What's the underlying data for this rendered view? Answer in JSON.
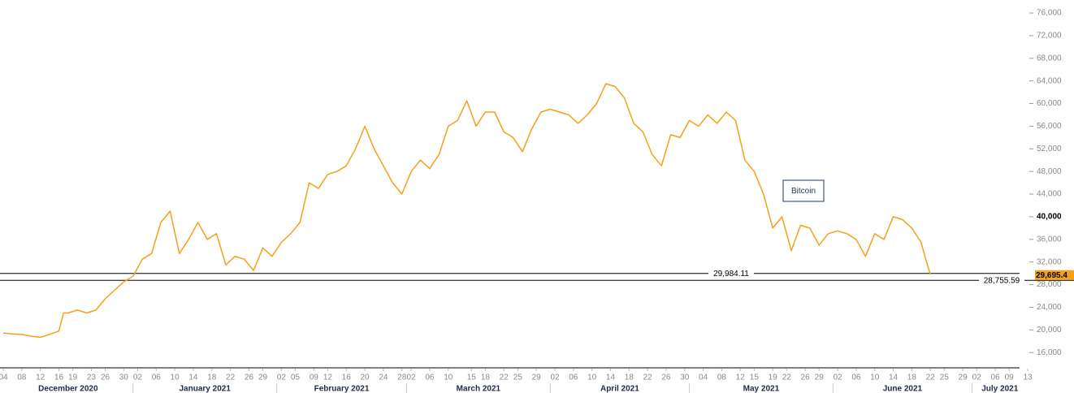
{
  "chart_data": {
    "type": "line",
    "series": [
      {
        "name": "Bitcoin",
        "color": "#f5a01a",
        "x": [
          "2020-12-04",
          "2020-12-06",
          "2020-12-08",
          "2020-12-10",
          "2020-12-12",
          "2020-12-14",
          "2020-12-16",
          "2020-12-17",
          "2020-12-18",
          "2020-12-20",
          "2020-12-22",
          "2020-12-24",
          "2020-12-26",
          "2020-12-28",
          "2020-12-30",
          "2021-01-01",
          "2021-01-03",
          "2021-01-05",
          "2021-01-07",
          "2021-01-09",
          "2021-01-11",
          "2021-01-13",
          "2021-01-15",
          "2021-01-17",
          "2021-01-19",
          "2021-01-21",
          "2021-01-23",
          "2021-01-25",
          "2021-01-27",
          "2021-01-29",
          "2021-01-31",
          "2021-02-02",
          "2021-02-04",
          "2021-02-06",
          "2021-02-08",
          "2021-02-10",
          "2021-02-12",
          "2021-02-14",
          "2021-02-16",
          "2021-02-18",
          "2021-02-20",
          "2021-02-22",
          "2021-02-24",
          "2021-02-26",
          "2021-02-28",
          "2021-03-02",
          "2021-03-04",
          "2021-03-06",
          "2021-03-08",
          "2021-03-10",
          "2021-03-12",
          "2021-03-14",
          "2021-03-16",
          "2021-03-18",
          "2021-03-20",
          "2021-03-22",
          "2021-03-24",
          "2021-03-26",
          "2021-03-28",
          "2021-03-30",
          "2021-04-01",
          "2021-04-03",
          "2021-04-05",
          "2021-04-07",
          "2021-04-09",
          "2021-04-11",
          "2021-04-13",
          "2021-04-15",
          "2021-04-17",
          "2021-04-19",
          "2021-04-21",
          "2021-04-23",
          "2021-04-25",
          "2021-04-27",
          "2021-04-29",
          "2021-05-01",
          "2021-05-03",
          "2021-05-05",
          "2021-05-07",
          "2021-05-09",
          "2021-05-11",
          "2021-05-13",
          "2021-05-15",
          "2021-05-17",
          "2021-05-19",
          "2021-05-21",
          "2021-05-23",
          "2021-05-25",
          "2021-05-27",
          "2021-05-29",
          "2021-05-31",
          "2021-06-02",
          "2021-06-04",
          "2021-06-06",
          "2021-06-08",
          "2021-06-10",
          "2021-06-12",
          "2021-06-14",
          "2021-06-16",
          "2021-06-18",
          "2021-06-20",
          "2021-06-21",
          "2021-06-22"
        ],
        "values": [
          19450,
          19300,
          19200,
          18900,
          18700,
          19200,
          19800,
          23000,
          23000,
          23500,
          23000,
          23500,
          25500,
          27000,
          28500,
          29500,
          32500,
          33500,
          39000,
          41000,
          33500,
          36000,
          39000,
          36000,
          37000,
          31500,
          33000,
          32500,
          30500,
          34500,
          33000,
          35500,
          37000,
          39000,
          46000,
          45000,
          47500,
          48000,
          49000,
          52000,
          56000,
          52000,
          49000,
          46000,
          44000,
          48000,
          50000,
          48500,
          51000,
          56000,
          57000,
          60500,
          56000,
          58500,
          58500,
          55000,
          54000,
          51500,
          55500,
          58500,
          59000,
          58500,
          58000,
          56500,
          58000,
          60000,
          63500,
          63000,
          61000,
          56500,
          55000,
          51000,
          49000,
          54500,
          54000,
          57000,
          56000,
          58000,
          56500,
          58500,
          57000,
          50000,
          48000,
          44000,
          38000,
          40000,
          34000,
          38500,
          38000,
          35000,
          37000,
          37500,
          37000,
          36000,
          33000,
          37000,
          36000,
          40000,
          39500,
          38000,
          35500,
          32500,
          29800
        ]
      }
    ],
    "xlim": [
      "2020-12-04",
      "2021-07-13"
    ],
    "xticks": [
      {
        "value": "2020-12-04",
        "label": "04"
      },
      {
        "value": "2020-12-08",
        "label": "08"
      },
      {
        "value": "2020-12-12",
        "label": "12"
      },
      {
        "value": "2020-12-16",
        "label": "16"
      },
      {
        "value": "2020-12-19",
        "label": "19"
      },
      {
        "value": "2020-12-23",
        "label": "23"
      },
      {
        "value": "2020-12-26",
        "label": "26"
      },
      {
        "value": "2020-12-30",
        "label": "30"
      },
      {
        "value": "2021-01-02",
        "label": "02"
      },
      {
        "value": "2021-01-06",
        "label": "06"
      },
      {
        "value": "2021-01-10",
        "label": "10"
      },
      {
        "value": "2021-01-14",
        "label": "14"
      },
      {
        "value": "2021-01-18",
        "label": "18"
      },
      {
        "value": "2021-01-22",
        "label": "22"
      },
      {
        "value": "2021-01-26",
        "label": "26"
      },
      {
        "value": "2021-01-29",
        "label": "29"
      },
      {
        "value": "2021-02-02",
        "label": "02"
      },
      {
        "value": "2021-02-05",
        "label": "05"
      },
      {
        "value": "2021-02-09",
        "label": "09"
      },
      {
        "value": "2021-02-12",
        "label": "12"
      },
      {
        "value": "2021-02-16",
        "label": "16"
      },
      {
        "value": "2021-02-20",
        "label": "20"
      },
      {
        "value": "2021-02-24",
        "label": "24"
      },
      {
        "value": "2021-02-28",
        "label": "28"
      },
      {
        "value": "2021-03-02",
        "label": "02"
      },
      {
        "value": "2021-03-06",
        "label": "06"
      },
      {
        "value": "2021-03-10",
        "label": "10"
      },
      {
        "value": "2021-03-15",
        "label": "15"
      },
      {
        "value": "2021-03-18",
        "label": "18"
      },
      {
        "value": "2021-03-22",
        "label": "22"
      },
      {
        "value": "2021-03-25",
        "label": "25"
      },
      {
        "value": "2021-03-29",
        "label": "29"
      },
      {
        "value": "2021-04-02",
        "label": "02"
      },
      {
        "value": "2021-04-06",
        "label": "06"
      },
      {
        "value": "2021-04-10",
        "label": "10"
      },
      {
        "value": "2021-04-14",
        "label": "14"
      },
      {
        "value": "2021-04-18",
        "label": "18"
      },
      {
        "value": "2021-04-22",
        "label": "22"
      },
      {
        "value": "2021-04-26",
        "label": "26"
      },
      {
        "value": "2021-04-30",
        "label": "30"
      },
      {
        "value": "2021-05-04",
        "label": "04"
      },
      {
        "value": "2021-05-08",
        "label": "08"
      },
      {
        "value": "2021-05-12",
        "label": "12"
      },
      {
        "value": "2021-05-15",
        "label": "15"
      },
      {
        "value": "2021-05-19",
        "label": "19"
      },
      {
        "value": "2021-05-22",
        "label": "22"
      },
      {
        "value": "2021-05-26",
        "label": "26"
      },
      {
        "value": "2021-05-29",
        "label": "29"
      },
      {
        "value": "2021-06-02",
        "label": "02"
      },
      {
        "value": "2021-06-06",
        "label": "06"
      },
      {
        "value": "2021-06-10",
        "label": "10"
      },
      {
        "value": "2021-06-14",
        "label": "14"
      },
      {
        "value": "2021-06-18",
        "label": "18"
      },
      {
        "value": "2021-06-22",
        "label": "22"
      },
      {
        "value": "2021-06-25",
        "label": "25"
      },
      {
        "value": "2021-06-29",
        "label": "29"
      },
      {
        "value": "2021-07-02",
        "label": "02"
      },
      {
        "value": "2021-07-06",
        "label": "06"
      },
      {
        "value": "2021-07-09",
        "label": "09"
      },
      {
        "value": "2021-07-13",
        "label": "13"
      }
    ],
    "months": [
      {
        "value": "2020-12",
        "label": "December 2020"
      },
      {
        "value": "2021-01",
        "label": "January 2021"
      },
      {
        "value": "2021-02",
        "label": "February 2021"
      },
      {
        "value": "2021-03",
        "label": "March 2021"
      },
      {
        "value": "2021-04",
        "label": "April 2021"
      },
      {
        "value": "2021-05",
        "label": "May 2021"
      },
      {
        "value": "2021-06",
        "label": "June 2021"
      },
      {
        "value": "2021-07",
        "label": "July 2021"
      }
    ],
    "ylim": [
      13300,
      78300
    ],
    "yticks": [
      {
        "value": 16000,
        "label": "16,000"
      },
      {
        "value": 20000,
        "label": "20,000"
      },
      {
        "value": 24000,
        "label": "24,000"
      },
      {
        "value": 28000,
        "label": "28,000"
      },
      {
        "value": 32000,
        "label": "32,000"
      },
      {
        "value": 36000,
        "label": "36,000"
      },
      {
        "value": 40000,
        "label": "40,000"
      },
      {
        "value": 44000,
        "label": "44,000"
      },
      {
        "value": 48000,
        "label": "48,000"
      },
      {
        "value": 52000,
        "label": "52,000"
      },
      {
        "value": 56000,
        "label": "56,000"
      },
      {
        "value": 60000,
        "label": "60,000"
      },
      {
        "value": 64000,
        "label": "64,000"
      },
      {
        "value": 68000,
        "label": "68,000"
      },
      {
        "value": 72000,
        "label": "72,000"
      },
      {
        "value": 76000,
        "label": "76,000"
      }
    ],
    "highlight_ytick": 40000,
    "levels": [
      {
        "value": 29984.11,
        "label": "29,984.11"
      },
      {
        "value": 28755.59,
        "label": "28,755.59"
      }
    ],
    "last_price": {
      "value": 29695.4,
      "label": "29,695.4",
      "color": "#f5a01a"
    }
  }
}
